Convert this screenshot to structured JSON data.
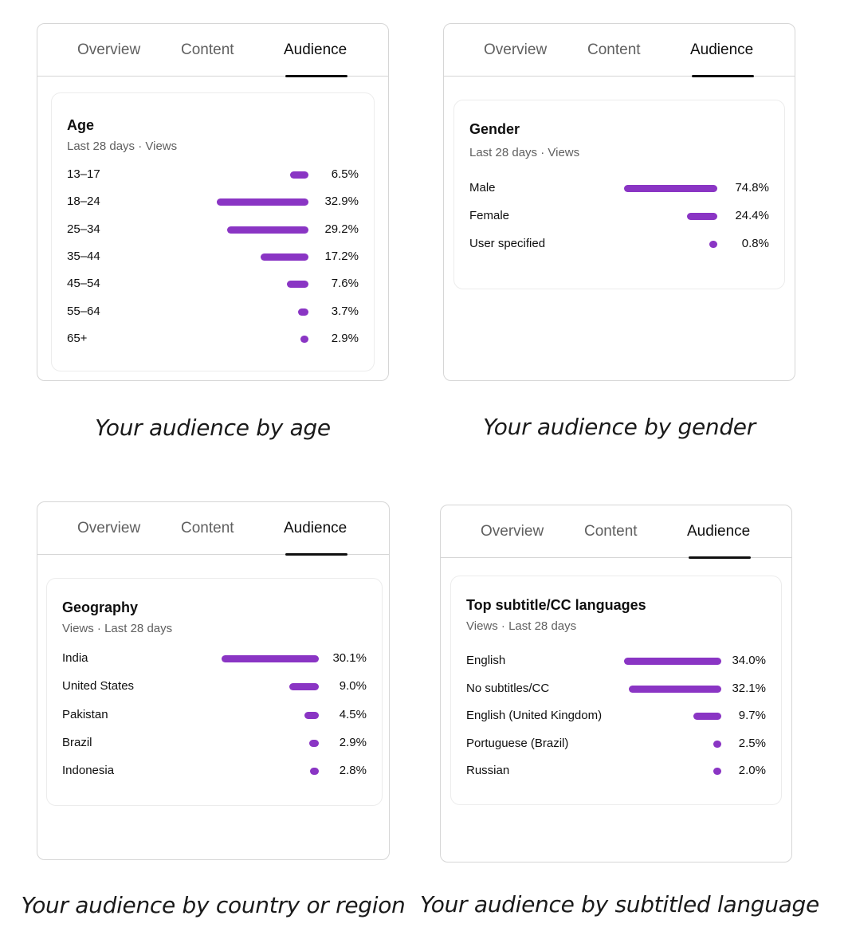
{
  "colors": {
    "bar": "#8a35c4",
    "accent_text": "#0f0f0f",
    "muted_text": "#606060"
  },
  "panels": [
    {
      "tabs": [
        "Overview",
        "Content",
        "Audience"
      ],
      "active_tab": "Audience",
      "card": {
        "title": "Age",
        "subtitle": "Last 28 days · Views",
        "rows": [
          {
            "label": "13–17",
            "value": "6.5%",
            "pct": 6.5
          },
          {
            "label": "18–24",
            "value": "32.9%",
            "pct": 32.9
          },
          {
            "label": "25–34",
            "value": "29.2%",
            "pct": 29.2
          },
          {
            "label": "35–44",
            "value": "17.2%",
            "pct": 17.2
          },
          {
            "label": "45–54",
            "value": "7.6%",
            "pct": 7.6
          },
          {
            "label": "55–64",
            "value": "3.7%",
            "pct": 3.7
          },
          {
            "label": "65+",
            "value": "2.9%",
            "pct": 2.9
          }
        ]
      },
      "caption": "Your audience by age"
    },
    {
      "tabs": [
        "Overview",
        "Content",
        "Audience"
      ],
      "active_tab": "Audience",
      "card": {
        "title": "Gender",
        "subtitle": "Last 28 days · Views",
        "rows": [
          {
            "label": "Male",
            "value": "74.8%",
            "pct": 74.8
          },
          {
            "label": "Female",
            "value": "24.4%",
            "pct": 24.4
          },
          {
            "label": "User specified",
            "value": "0.8%",
            "pct": 0.8
          }
        ]
      },
      "caption": "Your audience by gender"
    },
    {
      "tabs": [
        "Overview",
        "Content",
        "Audience"
      ],
      "active_tab": "Audience",
      "card": {
        "title": "Geography",
        "subtitle": "Views · Last 28 days",
        "rows": [
          {
            "label": "India",
            "value": "30.1%",
            "pct": 30.1
          },
          {
            "label": "United States",
            "value": "9.0%",
            "pct": 9.0
          },
          {
            "label": "Pakistan",
            "value": "4.5%",
            "pct": 4.5
          },
          {
            "label": "Brazil",
            "value": "2.9%",
            "pct": 2.9
          },
          {
            "label": "Indonesia",
            "value": "2.8%",
            "pct": 2.8
          }
        ]
      },
      "caption": "Your audience by country or region"
    },
    {
      "tabs": [
        "Overview",
        "Content",
        "Audience"
      ],
      "active_tab": "Audience",
      "card": {
        "title": "Top subtitle/CC languages",
        "subtitle": "Views · Last 28 days",
        "rows": [
          {
            "label": "English",
            "value": "34.0%",
            "pct": 34.0
          },
          {
            "label": "No subtitles/CC",
            "value": "32.1%",
            "pct": 32.1
          },
          {
            "label": "English (United Kingdom)",
            "value": "9.7%",
            "pct": 9.7
          },
          {
            "label": "Portuguese (Brazil)",
            "value": "2.5%",
            "pct": 2.5
          },
          {
            "label": "Russian",
            "value": "2.0%",
            "pct": 2.0
          }
        ]
      },
      "caption": "Your audience by subtitled language"
    }
  ]
}
